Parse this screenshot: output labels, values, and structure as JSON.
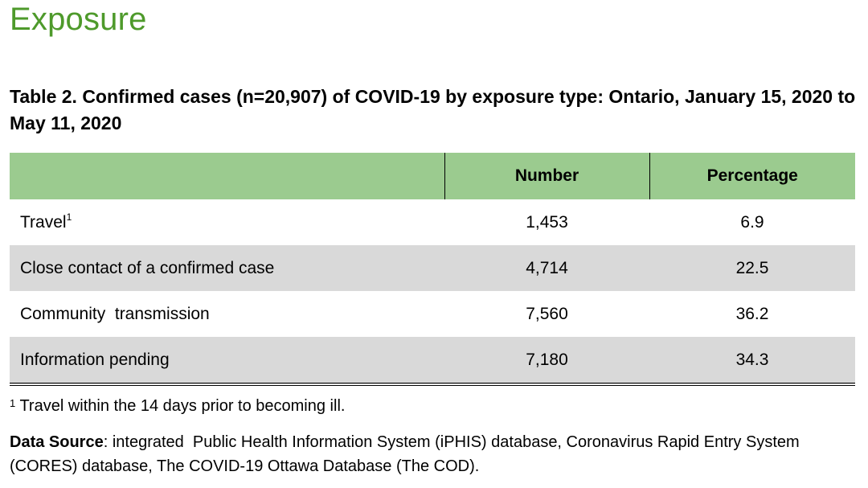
{
  "colors": {
    "heading": "#4e9a2b",
    "header_fill": "#9bcb8f",
    "row_shade": "#d9d9d9"
  },
  "heading": "Exposure",
  "caption": "Table 2. Confirmed cases (n=20,907) of COVID-19 by exposure type: Ontario, January 15, 2020 to May 11, 2020",
  "table": {
    "columns": [
      "",
      "Number",
      "Percentage"
    ],
    "rows": [
      {
        "label": "Travel",
        "sup": "1",
        "number": "1,453",
        "percentage": "6.9"
      },
      {
        "label": "Close contact of a confirmed case",
        "sup": "",
        "number": "4,714",
        "percentage": "22.5"
      },
      {
        "label": "Community  transmission",
        "sup": "",
        "number": "7,560",
        "percentage": "36.2"
      },
      {
        "label": "Information pending",
        "sup": "",
        "number": "7,180",
        "percentage": "34.3"
      }
    ]
  },
  "footnote": {
    "marker": "1",
    "text": "Travel within the 14 days prior to becoming ill."
  },
  "data_source": {
    "label": "Data Source",
    "text": ": integrated  Public Health Information System (iPHIS) database, Coronavirus Rapid Entry System (CORES) database, The COVID-19 Ottawa Database (The COD)."
  }
}
